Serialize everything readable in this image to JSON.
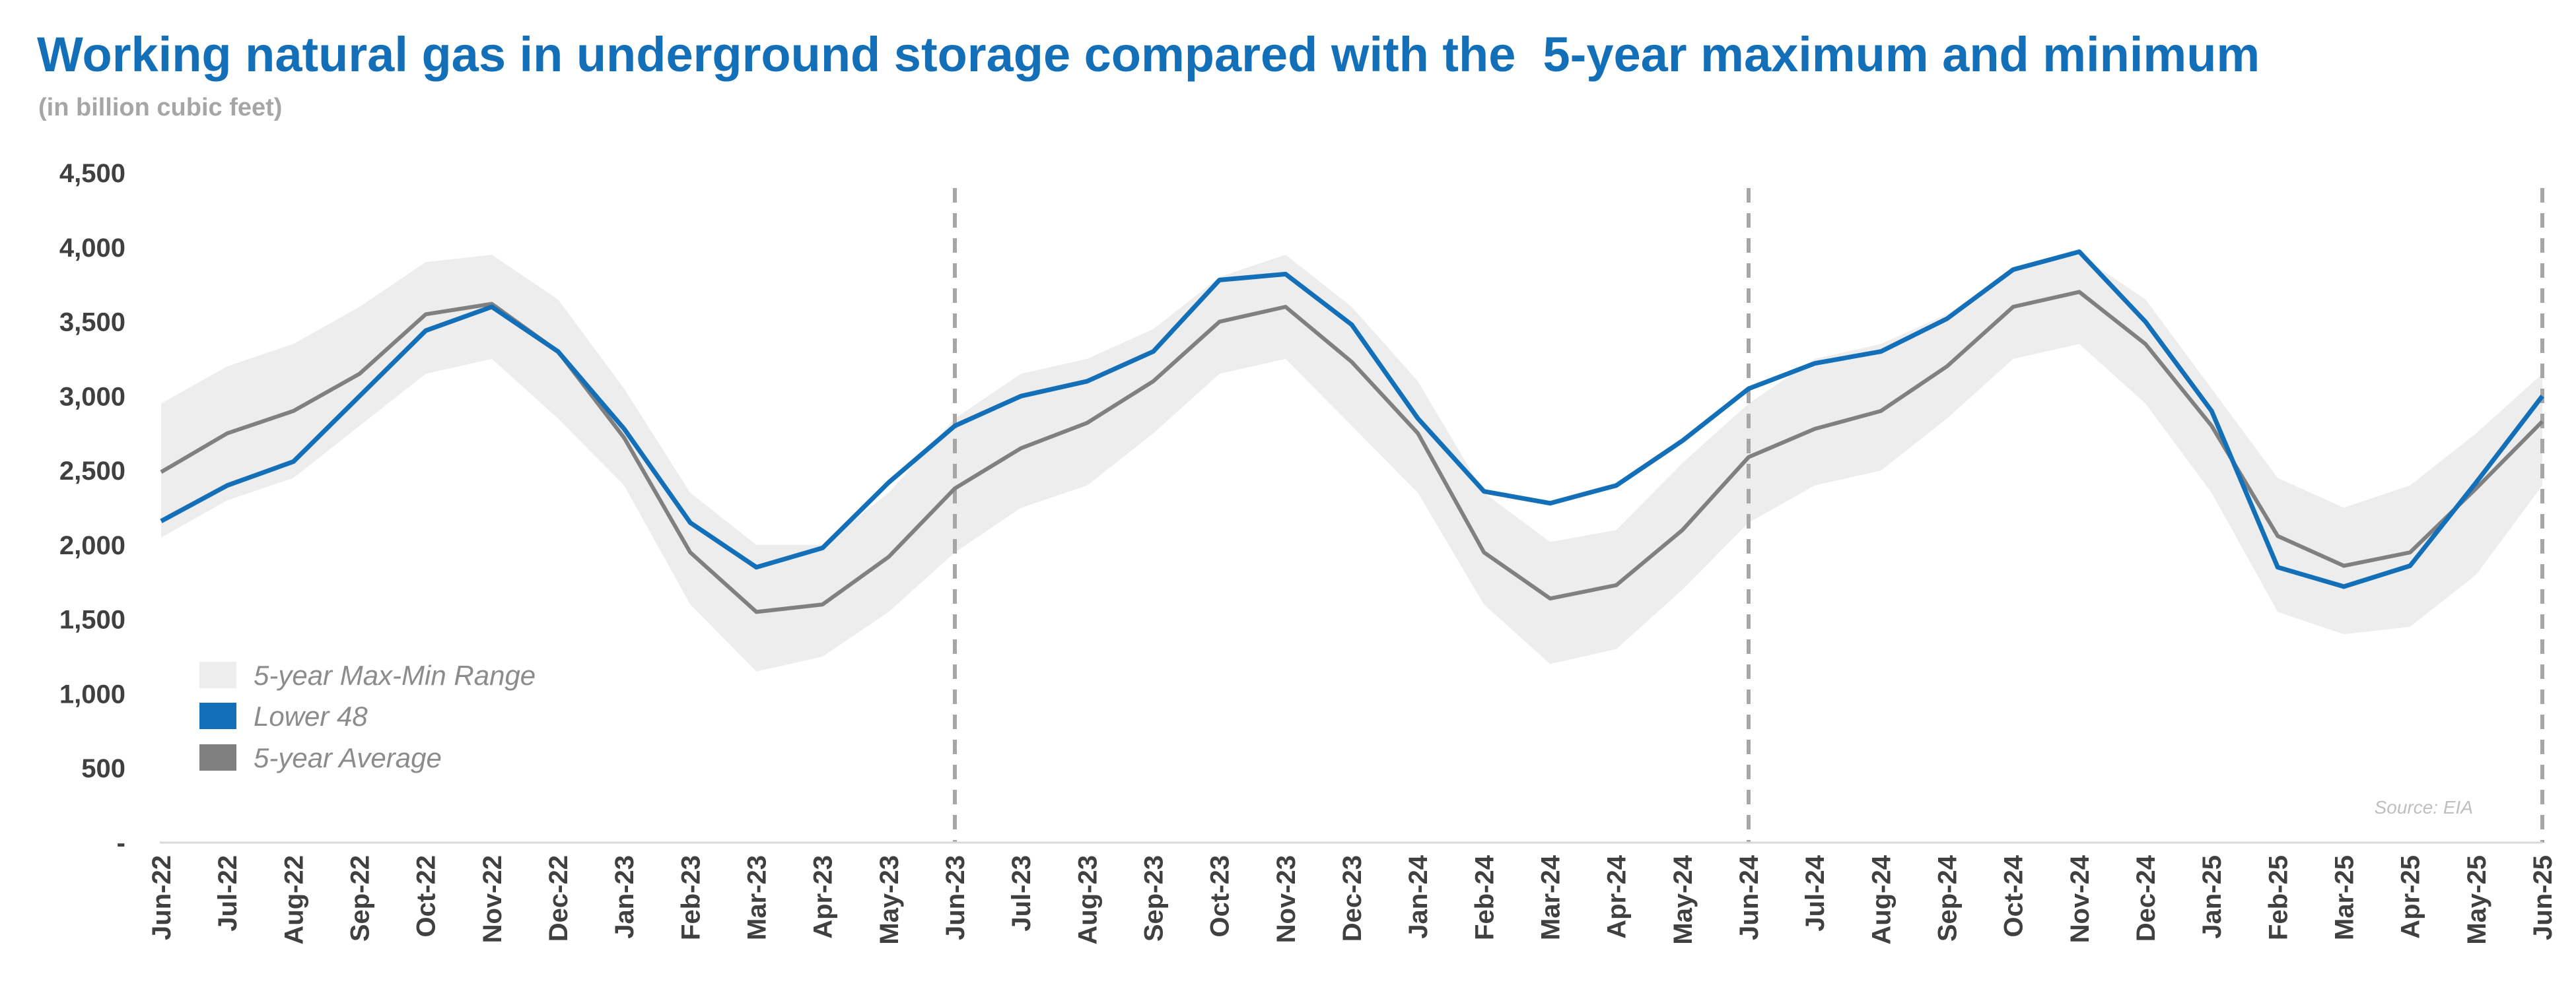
{
  "title": "Working natural gas in underground storage compared with the  5-year maximum and minimum",
  "subtitle": "(in billion cubic feet)",
  "source": "Source: EIA",
  "legend": [
    {
      "label": "5-year Max-Min Range",
      "color": "#ededed"
    },
    {
      "label": "Lower 48",
      "color": "#1370b8"
    },
    {
      "label": "5-year Average",
      "color": "#808080"
    }
  ],
  "chart_data": {
    "type": "line",
    "title": "Working natural gas in underground storage compared with the  5-year maximum and minimum",
    "ylabel": "(in billion cubic feet)",
    "ylim": [
      0,
      4500
    ],
    "yticks": [
      {
        "value": 0,
        "label": "-"
      },
      {
        "value": 500,
        "label": "500"
      },
      {
        "value": 1000,
        "label": "1,000"
      },
      {
        "value": 1500,
        "label": "1,500"
      },
      {
        "value": 2000,
        "label": "2,000"
      },
      {
        "value": 2500,
        "label": "2,500"
      },
      {
        "value": 3000,
        "label": "3,000"
      },
      {
        "value": 3500,
        "label": "3,500"
      },
      {
        "value": 4000,
        "label": "4,000"
      },
      {
        "value": 4500,
        "label": "4,500"
      }
    ],
    "categories": [
      "Jun-22",
      "Jul-22",
      "Aug-22",
      "Sep-22",
      "Oct-22",
      "Nov-22",
      "Dec-22",
      "Jan-23",
      "Feb-23",
      "Mar-23",
      "Apr-23",
      "May-23",
      "Jun-23",
      "Jul-23",
      "Aug-23",
      "Sep-23",
      "Oct-23",
      "Nov-23",
      "Dec-23",
      "Jan-24",
      "Feb-24",
      "Mar-24",
      "Apr-24",
      "May-24",
      "Jun-24",
      "Jul-24",
      "Aug-24",
      "Sep-24",
      "Oct-24",
      "Nov-24",
      "Dec-24",
      "Jan-25",
      "Feb-25",
      "Mar-25",
      "Apr-25",
      "May-25",
      "Jun-25"
    ],
    "vlines_at": [
      "Jun-23",
      "Jun-24",
      "Jun-25"
    ],
    "legend_position": "bottom-left",
    "grid": false,
    "series": [
      {
        "name": "Lower 48",
        "color": "#1370b8",
        "values": [
          2160,
          2400,
          2560,
          3000,
          3440,
          3600,
          3300,
          2780,
          2150,
          1850,
          1980,
          2420,
          2800,
          3000,
          3100,
          3300,
          3780,
          3820,
          3480,
          2850,
          2360,
          2280,
          2400,
          2700,
          3050,
          3220,
          3300,
          3520,
          3850,
          3970,
          3500,
          2900,
          1850,
          1720,
          1860,
          2420,
          3000
        ]
      },
      {
        "name": "5-year Average",
        "color": "#808080",
        "values": [
          2490,
          2750,
          2900,
          3150,
          3550,
          3620,
          3300,
          2720,
          1950,
          1550,
          1600,
          1920,
          2380,
          2650,
          2820,
          3100,
          3500,
          3600,
          3230,
          2750,
          1950,
          1640,
          1730,
          2100,
          2590,
          2780,
          2900,
          3200,
          3600,
          3700,
          3350,
          2800,
          2060,
          1860,
          1950,
          2380,
          2830
        ]
      },
      {
        "name": "5-year Max-Min Range",
        "max": [
          2950,
          3200,
          3350,
          3600,
          3900,
          3950,
          3650,
          3050,
          2350,
          2000,
          2000,
          2350,
          2850,
          3150,
          3250,
          3450,
          3800,
          3950,
          3600,
          3100,
          2350,
          2020,
          2100,
          2550,
          2950,
          3250,
          3350,
          3550,
          3850,
          3950,
          3650,
          3050,
          2450,
          2250,
          2400,
          2750,
          3150
        ],
        "min": [
          2050,
          2300,
          2450,
          2800,
          3150,
          3250,
          2850,
          2400,
          1600,
          1150,
          1250,
          1550,
          1950,
          2250,
          2400,
          2750,
          3150,
          3250,
          2800,
          2350,
          1600,
          1200,
          1300,
          1700,
          2150,
          2400,
          2500,
          2850,
          3250,
          3350,
          2950,
          2350,
          1550,
          1400,
          1450,
          1800,
          2400
        ]
      }
    ]
  }
}
